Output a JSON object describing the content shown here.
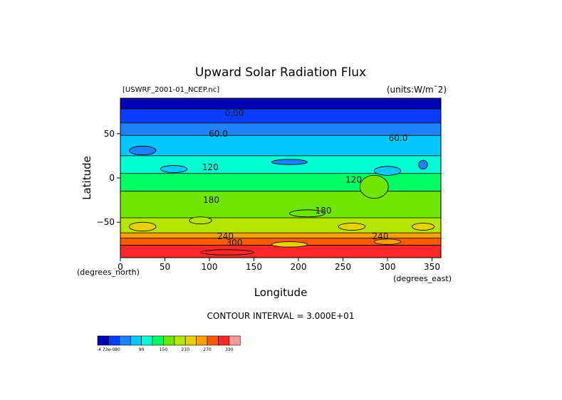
{
  "chart_data": {
    "type": "heatmap",
    "title": "Upward Solar Radiation Flux",
    "file_label": "[USWRF_2001-01_NCEP.nc]",
    "units_label": "(units:W/m¯2)",
    "xlabel": "Longitude",
    "ylabel": "Latitude",
    "x_unit_left": "(degrees_north)",
    "x_unit_right": "(degrees_east)",
    "xlim": [
      0,
      360
    ],
    "ylim": [
      -90,
      90
    ],
    "x_ticks": [
      0,
      50,
      100,
      150,
      200,
      250,
      300,
      350
    ],
    "y_ticks": [
      50,
      0,
      -50
    ],
    "y_tick_labels": [
      "50",
      "0",
      "−50"
    ],
    "contour_interval_text": "CONTOUR INTERVAL = 3.000E+01",
    "contour_labels": [
      {
        "text": "0.00",
        "lon": 128,
        "lat": 73
      },
      {
        "text": "60.0",
        "lon": 110,
        "lat": 50
      },
      {
        "text": "60.0",
        "lon": 312,
        "lat": 45
      },
      {
        "text": "120",
        "lon": 101,
        "lat": 12
      },
      {
        "text": "120",
        "lon": 262,
        "lat": -2
      },
      {
        "text": "180",
        "lon": 102,
        "lat": -25
      },
      {
        "text": "180",
        "lon": 228,
        "lat": -37
      },
      {
        "text": "240",
        "lon": 118,
        "lat": -66
      },
      {
        "text": "240",
        "lon": 292,
        "lat": -66
      },
      {
        "text": "300",
        "lon": 128,
        "lat": -73
      }
    ],
    "zonal_bands": [
      {
        "lat_top": 90,
        "lat_bottom": 78,
        "value": -15
      },
      {
        "lat_top": 78,
        "lat_bottom": 62,
        "value": 15
      },
      {
        "lat_top": 62,
        "lat_bottom": 48,
        "value": 45
      },
      {
        "lat_top": 48,
        "lat_bottom": 25,
        "value": 75
      },
      {
        "lat_top": 25,
        "lat_bottom": 5,
        "value": 105
      },
      {
        "lat_top": 5,
        "lat_bottom": -15,
        "value": 135
      },
      {
        "lat_top": -15,
        "lat_bottom": -45,
        "value": 165
      },
      {
        "lat_top": -45,
        "lat_bottom": -62,
        "value": 195
      },
      {
        "lat_top": -62,
        "lat_bottom": -68,
        "value": 255
      },
      {
        "lat_top": -68,
        "lat_bottom": -76,
        "value": 285
      },
      {
        "lat_top": -76,
        "lat_bottom": -90,
        "value": 315
      }
    ],
    "patches": [
      {
        "lon": 25,
        "lat": 31,
        "lon_w": 30,
        "lat_h": 10,
        "value": 45
      },
      {
        "lon": 190,
        "lat": 18,
        "lon_w": 40,
        "lat_h": 6,
        "value": 45
      },
      {
        "lon": 340,
        "lat": 15,
        "lon_w": 10,
        "lat_h": 10,
        "value": 45
      },
      {
        "lon": 60,
        "lat": 10,
        "lon_w": 30,
        "lat_h": 8,
        "value": 75
      },
      {
        "lon": 300,
        "lat": 8,
        "lon_w": 30,
        "lat_h": 10,
        "value": 75
      },
      {
        "lon": 285,
        "lat": -10,
        "lon_w": 32,
        "lat_h": 26,
        "value": 165
      },
      {
        "lon": 210,
        "lat": -40,
        "lon_w": 40,
        "lat_h": 8,
        "value": 165
      },
      {
        "lon": 25,
        "lat": -55,
        "lon_w": 30,
        "lat_h": 10,
        "value": 225
      },
      {
        "lon": 90,
        "lat": -48,
        "lon_w": 25,
        "lat_h": 8,
        "value": 195
      },
      {
        "lon": 260,
        "lat": -55,
        "lon_w": 30,
        "lat_h": 8,
        "value": 225
      },
      {
        "lon": 340,
        "lat": -55,
        "lon_w": 25,
        "lat_h": 8,
        "value": 225
      },
      {
        "lon": 190,
        "lat": -75,
        "lon_w": 40,
        "lat_h": 6,
        "value": 225
      },
      {
        "lon": 300,
        "lat": -72,
        "lon_w": 30,
        "lat_h": 6,
        "value": 255
      },
      {
        "lon": 120,
        "lat": -84,
        "lon_w": 60,
        "lat_h": 6,
        "value": 315
      }
    ],
    "colorbar": {
      "colors": [
        "#0000b4",
        "#0a3cff",
        "#1e82ff",
        "#00c8ff",
        "#00ffd2",
        "#00ff64",
        "#6ee600",
        "#b4e600",
        "#e6d200",
        "#ffa000",
        "#ff5a00",
        "#ff2828",
        "#ff9999"
      ],
      "labels": [
        "-4.73e-080",
        "90",
        "150",
        "210",
        "270",
        "330"
      ],
      "label_slots": [
        0,
        3,
        5,
        7,
        9,
        11
      ]
    },
    "value_levels": [
      -30,
      0,
      30,
      60,
      90,
      120,
      150,
      180,
      210,
      240,
      270,
      300,
      330
    ],
    "polar_color": "#8c00c8",
    "grid": false,
    "legend": "bottom-left"
  }
}
